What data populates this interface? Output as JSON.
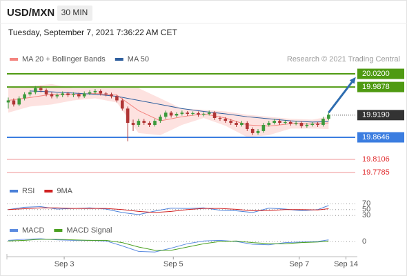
{
  "header": {
    "title": "USD/MXN",
    "timeframe": "30 MIN",
    "datetime": "Tuesday, September 7, 2021 7:36:22 AM CET"
  },
  "chart_data": [
    {
      "type": "candlestick",
      "credit": "Research © 2021 Trading Central",
      "up_color": "#3c9a3c",
      "down_color": "#b03535",
      "xlim": [
        0,
        64
      ],
      "ylim": [
        19.765,
        20.08
      ],
      "xticks": [
        {
          "value": 10.3,
          "label": "Sep 3"
        },
        {
          "value": 30.4,
          "label": "Sep 5"
        },
        {
          "value": 53.6,
          "label": "Sep 7"
        },
        {
          "value": 62.2,
          "label": "Sep 14"
        }
      ],
      "ohlc": [
        [
          19.95,
          19.962,
          19.935,
          19.955
        ],
        [
          19.955,
          19.96,
          19.94,
          19.945
        ],
        [
          19.945,
          19.965,
          19.941,
          19.96
        ],
        [
          19.96,
          19.975,
          19.955,
          19.97
        ],
        [
          19.97,
          19.98,
          19.965,
          19.975
        ],
        [
          19.975,
          19.99,
          19.97,
          19.985
        ],
        [
          19.985,
          19.99,
          19.975,
          19.98
        ],
        [
          19.98,
          19.984,
          19.965,
          19.97
        ],
        [
          19.97,
          19.975,
          19.96,
          19.965
        ],
        [
          19.965,
          19.972,
          19.96,
          19.968
        ],
        [
          19.968,
          19.977,
          19.963,
          19.972
        ],
        [
          19.972,
          19.976,
          19.963,
          19.968
        ],
        [
          19.968,
          19.975,
          19.963,
          19.97
        ],
        [
          19.97,
          19.974,
          19.96,
          19.965
        ],
        [
          19.965,
          19.977,
          19.961,
          19.972
        ],
        [
          19.972,
          19.98,
          19.968,
          19.975
        ],
        [
          19.975,
          19.983,
          19.97,
          19.978
        ],
        [
          19.978,
          19.982,
          19.967,
          19.972
        ],
        [
          19.972,
          19.976,
          19.965,
          19.97
        ],
        [
          19.97,
          19.974,
          19.96,
          19.965
        ],
        [
          19.965,
          19.969,
          19.95,
          19.955
        ],
        [
          19.955,
          19.96,
          19.93,
          19.935
        ],
        [
          19.935,
          19.94,
          19.855,
          19.9
        ],
        [
          19.9,
          19.908,
          19.88,
          19.895
        ],
        [
          19.895,
          19.91,
          19.89,
          19.905
        ],
        [
          19.905,
          19.91,
          19.895,
          19.9
        ],
        [
          19.9,
          19.904,
          19.89,
          19.895
        ],
        [
          19.895,
          19.91,
          19.891,
          19.905
        ],
        [
          19.905,
          19.92,
          19.9,
          19.915
        ],
        [
          19.915,
          19.93,
          19.91,
          19.925
        ],
        [
          19.925,
          19.929,
          19.913,
          19.918
        ],
        [
          19.918,
          19.926,
          19.914,
          19.922
        ],
        [
          19.922,
          19.93,
          19.918,
          19.925
        ],
        [
          19.925,
          19.929,
          19.917,
          19.922
        ],
        [
          19.922,
          19.928,
          19.918,
          19.924
        ],
        [
          19.924,
          19.928,
          19.915,
          19.92
        ],
        [
          19.92,
          19.926,
          19.916,
          19.922
        ],
        [
          19.922,
          19.93,
          19.918,
          19.925
        ],
        [
          19.925,
          19.929,
          19.907,
          19.912
        ],
        [
          19.912,
          19.916,
          19.905,
          19.91
        ],
        [
          19.91,
          19.914,
          19.9,
          19.905
        ],
        [
          19.905,
          19.909,
          19.895,
          19.9
        ],
        [
          19.9,
          19.904,
          19.89,
          19.895
        ],
        [
          19.895,
          19.905,
          19.891,
          19.9
        ],
        [
          19.9,
          19.904,
          19.88,
          19.885
        ],
        [
          19.885,
          19.889,
          19.87,
          19.875
        ],
        [
          19.875,
          19.885,
          19.871,
          19.88
        ],
        [
          19.88,
          19.9,
          19.876,
          19.895
        ],
        [
          19.895,
          19.905,
          19.891,
          19.9
        ],
        [
          19.9,
          19.91,
          19.896,
          19.905
        ],
        [
          19.905,
          19.909,
          19.895,
          19.9
        ],
        [
          19.9,
          19.907,
          19.896,
          19.902
        ],
        [
          19.902,
          19.906,
          19.893,
          19.898
        ],
        [
          19.898,
          19.905,
          19.894,
          19.9
        ],
        [
          19.9,
          19.904,
          19.887,
          19.892
        ],
        [
          19.892,
          19.9,
          19.888,
          19.895
        ],
        [
          19.895,
          19.902,
          19.891,
          19.898
        ],
        [
          19.898,
          19.902,
          19.89,
          19.895
        ],
        [
          19.895,
          19.915,
          19.891,
          19.91
        ],
        [
          19.91,
          19.925,
          19.906,
          19.92
        ]
      ],
      "series_x": [
        0,
        4,
        8,
        12,
        16,
        20,
        24,
        28,
        32,
        36,
        40,
        44,
        48,
        52,
        56,
        59
      ],
      "series": [
        {
          "name": "MA 20 + Bollinger Bands",
          "color": "#f4847f",
          "band_color": "#fde2e0",
          "values": [
            19.955,
            19.962,
            19.97,
            19.97,
            19.972,
            19.968,
            19.93,
            19.905,
            19.915,
            19.922,
            19.912,
            19.895,
            19.892,
            19.898,
            19.897,
            19.9
          ],
          "upper": [
            19.985,
            19.99,
            19.995,
            19.985,
            19.985,
            19.985,
            19.985,
            19.96,
            19.935,
            19.932,
            19.928,
            19.92,
            19.915,
            19.91,
            19.908,
            19.915
          ],
          "lower": [
            19.925,
            19.94,
            19.945,
            19.955,
            19.96,
            19.95,
            19.875,
            19.87,
            19.895,
            19.912,
            19.893,
            19.865,
            19.87,
            19.886,
            19.886,
            19.885
          ]
        },
        {
          "name": "MA 50",
          "color": "#2e5f9e",
          "values": [
            null,
            19.978,
            19.976,
            19.973,
            19.97,
            19.965,
            19.955,
            19.945,
            19.935,
            19.928,
            19.922,
            19.915,
            19.91,
            19.905,
            19.902,
            19.903
          ]
        }
      ],
      "levels": [
        {
          "value": 20.02,
          "label": "20.0200",
          "color": "#4f9a12",
          "boxed": true
        },
        {
          "value": 19.9878,
          "label": "19.9878",
          "color": "#4f9a12",
          "boxed": true
        },
        {
          "value": 19.919,
          "label": "19.9190",
          "color": "#333333",
          "boxed": true,
          "dotted": true
        },
        {
          "value": 19.8646,
          "label": "19.8646",
          "color": "#3b7de0",
          "boxed": true
        },
        {
          "value": 19.8106,
          "label": "19.8106",
          "color": "#e0292b",
          "boxed": false
        },
        {
          "value": 19.7785,
          "label": "19.7785",
          "color": "#e0292b",
          "boxed": false
        }
      ],
      "arrow": {
        "x": [
          59,
          64
        ],
        "y": [
          19.925,
          20.012
        ],
        "color": "#2e6db0"
      }
    },
    {
      "type": "line",
      "ylim": [
        0,
        100
      ],
      "yticks": [
        30,
        50,
        70
      ],
      "grid": true,
      "x": [
        0,
        3,
        6,
        9,
        12,
        15,
        18,
        21,
        24,
        27,
        30,
        33,
        36,
        39,
        42,
        45,
        48,
        51,
        54,
        57,
        59
      ],
      "series": [
        {
          "name": "RSI",
          "color": "#4a7fd8",
          "values": [
            50,
            58,
            60,
            52,
            54,
            56,
            52,
            40,
            33,
            45,
            55,
            54,
            56,
            48,
            46,
            40,
            55,
            52,
            46,
            50,
            64
          ]
        },
        {
          "name": "9MA",
          "color": "#d02020",
          "values": [
            50,
            53,
            56,
            56,
            54,
            54,
            54,
            50,
            44,
            40,
            44,
            50,
            54,
            54,
            51,
            46,
            47,
            50,
            50,
            49,
            53
          ]
        }
      ]
    },
    {
      "type": "line",
      "ylim": [
        -0.025,
        0.025
      ],
      "yticks": [
        0
      ],
      "grid": true,
      "x": [
        0,
        3,
        6,
        9,
        12,
        15,
        18,
        21,
        24,
        27,
        30,
        33,
        36,
        39,
        42,
        45,
        48,
        51,
        54,
        57,
        59
      ],
      "series": [
        {
          "name": "MACD",
          "color": "#5b8be0",
          "values": [
            0.002,
            0.004,
            0.005,
            0.003,
            0.002,
            0.002,
            0.001,
            -0.008,
            -0.018,
            -0.019,
            -0.012,
            -0.004,
            0.001,
            0.002,
            0,
            -0.005,
            -0.006,
            -0.002,
            -0.001,
            0,
            0.003
          ]
        },
        {
          "name": "MACD Signal",
          "color": "#4aa020",
          "values": [
            0.001,
            0.002,
            0.004,
            0.004,
            0.003,
            0.002,
            0.002,
            -0.002,
            -0.01,
            -0.016,
            -0.016,
            -0.01,
            -0.004,
            0,
            0.001,
            -0.002,
            -0.004,
            -0.004,
            -0.002,
            -0.001,
            0.001
          ]
        }
      ]
    }
  ]
}
